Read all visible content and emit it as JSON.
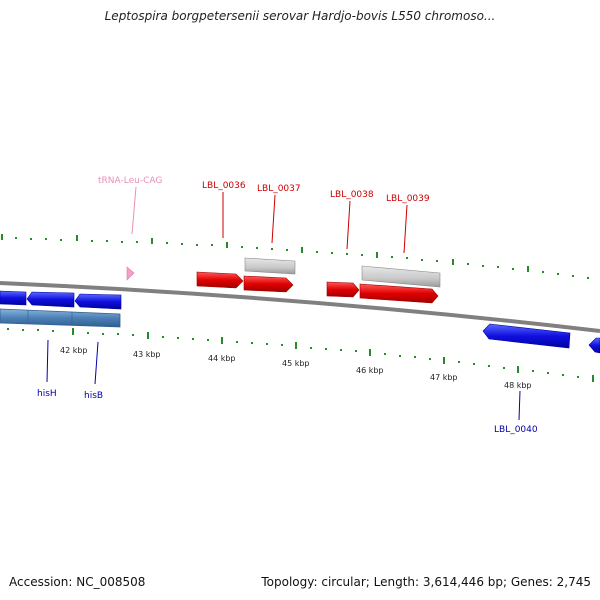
{
  "title": "Leptospira borgpetersenii serovar Hardjo-bovis L550 chromoso...",
  "footer": {
    "accession": "Accession: NC_008508",
    "summary": "Topology: circular; Length: 3,614,446 bp; Genes: 2,745"
  },
  "colors": {
    "forward_gene": "#e00000",
    "reverse_gene": "#1010e0",
    "reverse_operon": "#4a7fb5",
    "pseudogene": "#c8c8c8",
    "trna": "#f4a0c8",
    "backbone": "#808080",
    "tick": "#2a8a2a",
    "label_forward": "#cc0000",
    "label_reverse": "#0000aa",
    "label_trna": "#e890b8",
    "scale_text": "#222222"
  },
  "scale_labels": [
    "42 kbp",
    "43 kbp",
    "44 kbp",
    "45 kbp",
    "46 kbp",
    "47 kbp",
    "48 kbp"
  ],
  "gene_labels": {
    "trna": "tRNA-Leu-CAG",
    "lbl0036": "LBL_0036",
    "lbl0037": "LBL_0037",
    "lbl0038": "LBL_0038",
    "lbl0039": "LBL_0039",
    "hish": "hisH",
    "hisb": "hisB",
    "lbl0040": "LBL_0040"
  }
}
